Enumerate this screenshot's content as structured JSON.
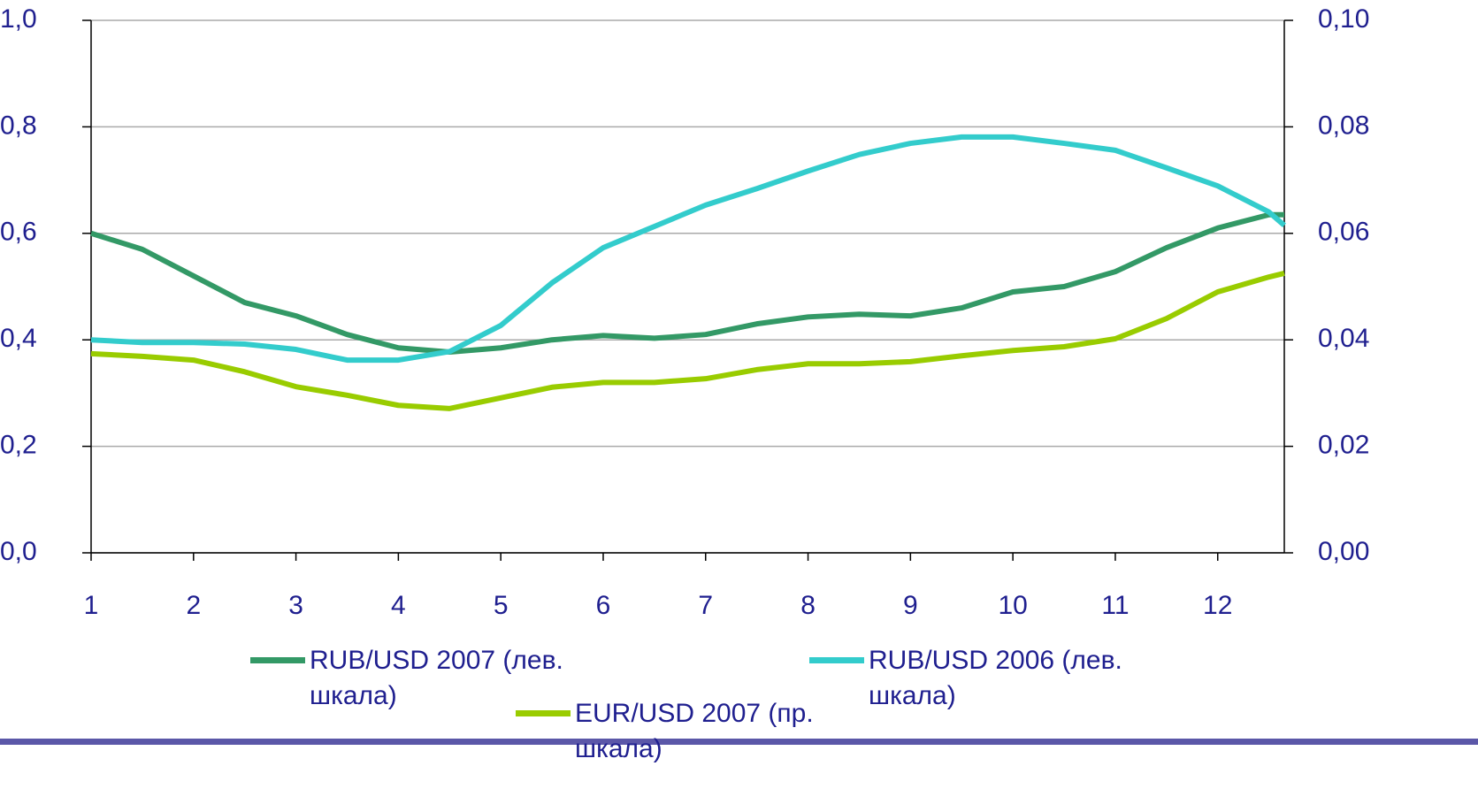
{
  "chart_data": {
    "type": "line",
    "x": [
      1,
      1.5,
      2,
      2.5,
      3,
      3.5,
      4,
      4.5,
      5,
      5.5,
      6,
      6.5,
      7,
      7.5,
      8,
      8.5,
      9,
      9.5,
      10,
      10.5,
      11,
      11.5,
      12,
      12.5,
      12.65
    ],
    "xlim": [
      1,
      12.65
    ],
    "xticks": [
      1,
      2,
      3,
      4,
      5,
      6,
      7,
      8,
      9,
      10,
      11,
      12
    ],
    "ylim": [
      0,
      1
    ],
    "yticks": [
      {
        "value": 0,
        "label": "0,0"
      },
      {
        "value": 0.2,
        "label": "0,2"
      },
      {
        "value": 0.4,
        "label": "0,4"
      },
      {
        "value": 0.6,
        "label": "0,6"
      },
      {
        "value": 0.8,
        "label": "0,8"
      },
      {
        "value": 1,
        "label": "1,0"
      }
    ],
    "y2lim": [
      0,
      0.1
    ],
    "y2ticks": [
      {
        "value": 0,
        "label": "0,00"
      },
      {
        "value": 0.02,
        "label": "0,02"
      },
      {
        "value": 0.04,
        "label": "0,04"
      },
      {
        "value": 0.06,
        "label": "0,06"
      },
      {
        "value": 0.08,
        "label": "0,08"
      },
      {
        "value": 0.1,
        "label": "0,10"
      }
    ],
    "grid": true,
    "legend": "bottom",
    "series": [
      {
        "name": "RUB/USD 2007 (лев. шкала)",
        "color": "#339966",
        "values": [
          0.6,
          0.57,
          0.52,
          0.47,
          0.445,
          0.41,
          0.385,
          0.377,
          0.385,
          0.4,
          0.408,
          0.403,
          0.41,
          0.43,
          0.443,
          0.448,
          0.445,
          0.46,
          0.49,
          0.5,
          0.528,
          0.573,
          0.61,
          0.635,
          0.635
        ]
      },
      {
        "name": "RUB/USD 2006 (лев. шкала)",
        "color": "#33cccc",
        "values": [
          0.4,
          0.395,
          0.395,
          0.392,
          0.382,
          0.362,
          0.362,
          0.378,
          0.427,
          0.507,
          0.573,
          0.613,
          0.653,
          0.684,
          0.717,
          0.748,
          0.769,
          0.781,
          0.781,
          0.769,
          0.756,
          0.723,
          0.689,
          0.64,
          0.615
        ]
      },
      {
        "name": "EUR/USD 2007 (пр. шкала)",
        "color": "#99cc00",
        "axis": "y2",
        "values": [
          0.0374,
          0.0369,
          0.0362,
          0.034,
          0.0312,
          0.0296,
          0.0277,
          0.0271,
          0.0291,
          0.0311,
          0.032,
          0.032,
          0.0327,
          0.0344,
          0.0355,
          0.0355,
          0.0359,
          0.037,
          0.038,
          0.0387,
          0.0402,
          0.044,
          0.049,
          0.0518,
          0.0525
        ]
      }
    ]
  }
}
